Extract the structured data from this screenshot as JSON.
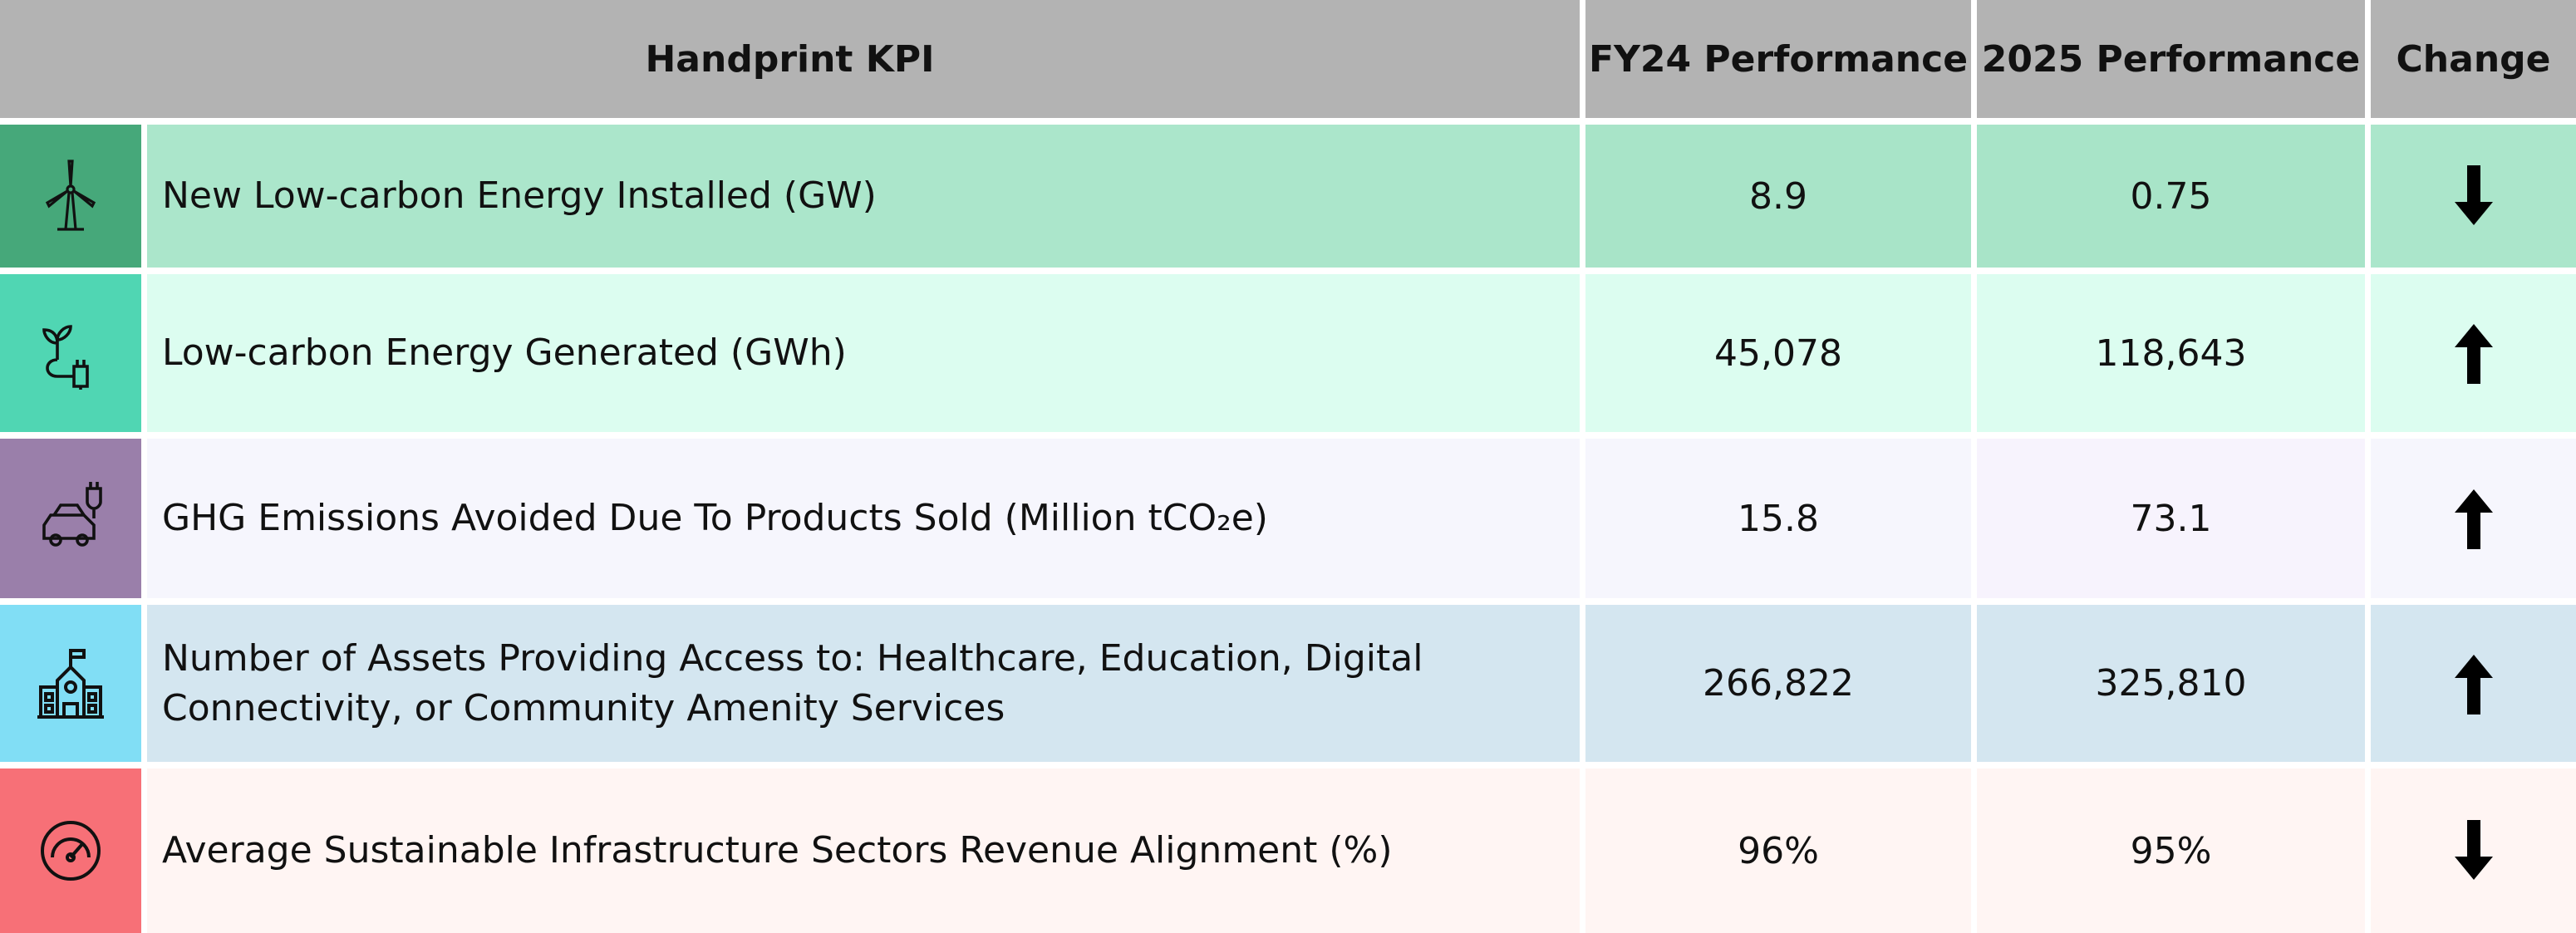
{
  "header": {
    "kpi": "Handprint KPI",
    "fy24": "FY24 Performance",
    "y2025": "2025 Performance",
    "change": "Change"
  },
  "rows": [
    {
      "label": "New Low-carbon Energy Installed (GW)",
      "fy24": "8.9",
      "y2025": "0.75"
    },
    {
      "label": "Low-carbon Energy Generated (GWh)",
      "fy24": "45,078",
      "y2025": "118,643"
    },
    {
      "label": "GHG Emissions Avoided Due To Products Sold (Million tCO₂e)",
      "fy24": "15.8",
      "y2025": "73.1"
    },
    {
      "label": "Number of Assets Providing Access to: Healthcare, Education, Digital Connectivity, or Community Amenity Services",
      "fy24": "266,822",
      "y2025": "325,810"
    },
    {
      "label": "Average Sustainable Infrastructure Sectors Revenue Alignment (%)",
      "fy24": "96%",
      "y2025": "95%"
    }
  ]
}
